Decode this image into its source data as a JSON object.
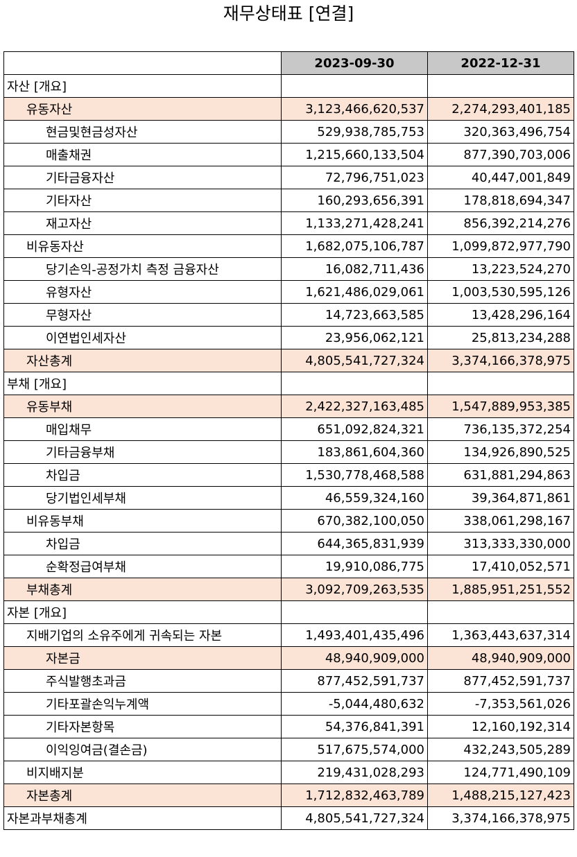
{
  "title": "재무상태표 [연결]",
  "columns": [
    "",
    "2023-09-30",
    "2022-12-31"
  ],
  "rows": [
    {
      "label": "자산 [개요]",
      "level": 0,
      "highlight": false,
      "v1": "",
      "v2": ""
    },
    {
      "label": "유동자산",
      "level": 1,
      "highlight": true,
      "v1": "3,123,466,620,537",
      "v2": "2,274,293,401,185"
    },
    {
      "label": "현금및현금성자산",
      "level": 2,
      "highlight": false,
      "v1": "529,938,785,753",
      "v2": "320,363,496,754"
    },
    {
      "label": "매출채권",
      "level": 2,
      "highlight": false,
      "v1": "1,215,660,133,504",
      "v2": "877,390,703,006"
    },
    {
      "label": "기타금융자산",
      "level": 2,
      "highlight": false,
      "v1": "72,796,751,023",
      "v2": "40,447,001,849"
    },
    {
      "label": "기타자산",
      "level": 2,
      "highlight": false,
      "v1": "160,293,656,391",
      "v2": "178,818,694,347"
    },
    {
      "label": "재고자산",
      "level": 2,
      "highlight": false,
      "v1": "1,133,271,428,241",
      "v2": "856,392,214,276"
    },
    {
      "label": "비유동자산",
      "level": 1,
      "highlight": false,
      "v1": "1,682,075,106,787",
      "v2": "1,099,872,977,790"
    },
    {
      "label": "당기손익-공정가치 측정 금융자산",
      "level": 2,
      "highlight": false,
      "v1": "16,082,711,436",
      "v2": "13,223,524,270"
    },
    {
      "label": "유형자산",
      "level": 2,
      "highlight": false,
      "v1": "1,621,486,029,061",
      "v2": "1,003,530,595,126"
    },
    {
      "label": "무형자산",
      "level": 2,
      "highlight": false,
      "v1": "14,723,663,585",
      "v2": "13,428,296,164"
    },
    {
      "label": "이연법인세자산",
      "level": 2,
      "highlight": false,
      "v1": "23,956,062,121",
      "v2": "25,813,234,288"
    },
    {
      "label": "자산총계",
      "level": 1,
      "highlight": true,
      "v1": "4,805,541,727,324",
      "v2": "3,374,166,378,975"
    },
    {
      "label": "부채 [개요]",
      "level": 0,
      "highlight": false,
      "v1": "",
      "v2": ""
    },
    {
      "label": "유동부채",
      "level": 1,
      "highlight": true,
      "v1": "2,422,327,163,485",
      "v2": "1,547,889,953,385"
    },
    {
      "label": "매입채무",
      "level": 2,
      "highlight": false,
      "v1": "651,092,824,321",
      "v2": "736,135,372,254"
    },
    {
      "label": "기타금융부채",
      "level": 2,
      "highlight": false,
      "v1": "183,861,604,360",
      "v2": "134,926,890,525"
    },
    {
      "label": "차입금",
      "level": 2,
      "highlight": false,
      "v1": "1,530,778,468,588",
      "v2": "631,881,294,863"
    },
    {
      "label": "당기법인세부채",
      "level": 2,
      "highlight": false,
      "v1": "46,559,324,160",
      "v2": "39,364,871,861"
    },
    {
      "label": "비유동부채",
      "level": 1,
      "highlight": false,
      "v1": "670,382,100,050",
      "v2": "338,061,298,167"
    },
    {
      "label": "차입금",
      "level": 2,
      "highlight": false,
      "v1": "644,365,831,939",
      "v2": "313,333,330,000"
    },
    {
      "label": "순확정급여부채",
      "level": 2,
      "highlight": false,
      "v1": "19,910,086,775",
      "v2": "17,410,052,571"
    },
    {
      "label": "부채총계",
      "level": 1,
      "highlight": true,
      "v1": "3,092,709,263,535",
      "v2": "1,885,951,251,552"
    },
    {
      "label": "자본 [개요]",
      "level": 0,
      "highlight": false,
      "v1": "",
      "v2": ""
    },
    {
      "label": "지배기업의 소유주에게 귀속되는 자본",
      "level": 1,
      "highlight": false,
      "v1": "1,493,401,435,496",
      "v2": "1,363,443,637,314"
    },
    {
      "label": "자본금",
      "level": 2,
      "highlight": true,
      "v1": "48,940,909,000",
      "v2": "48,940,909,000"
    },
    {
      "label": "주식발행초과금",
      "level": 2,
      "highlight": false,
      "v1": "877,452,591,737",
      "v2": "877,452,591,737"
    },
    {
      "label": "기타포괄손익누계액",
      "level": 2,
      "highlight": false,
      "v1": "-5,044,480,632",
      "v2": "-7,353,561,026"
    },
    {
      "label": "기타자본항목",
      "level": 2,
      "highlight": false,
      "v1": "54,376,841,391",
      "v2": "12,160,192,314"
    },
    {
      "label": "이익잉여금(결손금)",
      "level": 2,
      "highlight": false,
      "v1": "517,675,574,000",
      "v2": "432,243,505,289"
    },
    {
      "label": "비지배지분",
      "level": 1,
      "highlight": false,
      "v1": "219,431,028,293",
      "v2": "124,771,490,109"
    },
    {
      "label": "자본총계",
      "level": 1,
      "highlight": true,
      "v1": "1,712,832,463,789",
      "v2": "1,488,215,127,423"
    },
    {
      "label": "자본과부채총계",
      "level": 0,
      "highlight": false,
      "v1": "4,805,541,727,324",
      "v2": "3,374,166,378,975"
    }
  ]
}
